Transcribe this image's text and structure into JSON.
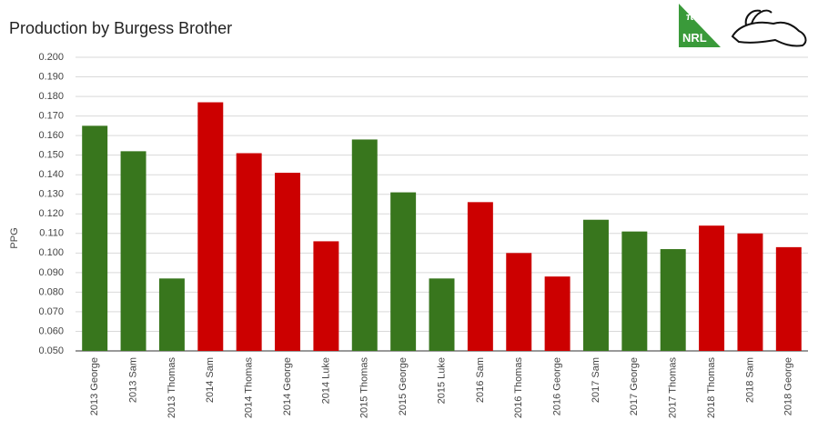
{
  "chart_data": {
    "type": "bar",
    "title": "Production by Burgess Brother",
    "y_label": "PPG",
    "logo_text": [
      "π",
      "NRL"
    ],
    "categories": [
      "2013 George",
      "2013 Sam",
      "2013 Thomas",
      "2014 Sam",
      "2014 Thomas",
      "2014 George",
      "2014 Luke",
      "2015 Thomas",
      "2015 George",
      "2015 Luke",
      "2016 Sam",
      "2016 Thomas",
      "2016 George",
      "2017 Sam",
      "2017 George",
      "2017 Thomas",
      "2018 Thomas",
      "2018 Sam",
      "2018 George"
    ],
    "values": [
      0.165,
      0.152,
      0.087,
      0.177,
      0.151,
      0.141,
      0.106,
      0.158,
      0.131,
      0.087,
      0.126,
      0.1,
      0.088,
      0.117,
      0.111,
      0.102,
      0.114,
      0.11,
      0.103
    ],
    "colors": [
      "#38761d",
      "#38761d",
      "#38761d",
      "#cc0000",
      "#cc0000",
      "#cc0000",
      "#cc0000",
      "#38761d",
      "#38761d",
      "#38761d",
      "#cc0000",
      "#cc0000",
      "#cc0000",
      "#38761d",
      "#38761d",
      "#38761d",
      "#cc0000",
      "#cc0000",
      "#cc0000"
    ],
    "ylim": [
      0.05,
      0.2
    ],
    "yticks": [
      {
        "value": 0.05,
        "label": "0.050"
      },
      {
        "value": 0.06,
        "label": "0.060"
      },
      {
        "value": 0.07,
        "label": "0.070"
      },
      {
        "value": 0.08,
        "label": "0.080"
      },
      {
        "value": 0.09,
        "label": "0.090"
      },
      {
        "value": 0.1,
        "label": "0.100"
      },
      {
        "value": 0.11,
        "label": "0.110"
      },
      {
        "value": 0.12,
        "label": "0.120"
      },
      {
        "value": 0.13,
        "label": "0.130"
      },
      {
        "value": 0.14,
        "label": "0.140"
      },
      {
        "value": 0.15,
        "label": "0.150"
      },
      {
        "value": 0.16,
        "label": "0.160"
      },
      {
        "value": 0.17,
        "label": "0.170"
      },
      {
        "value": 0.18,
        "label": "0.180"
      },
      {
        "value": 0.19,
        "label": "0.190"
      },
      {
        "value": 0.2,
        "label": "0.200"
      }
    ],
    "grid": true
  }
}
